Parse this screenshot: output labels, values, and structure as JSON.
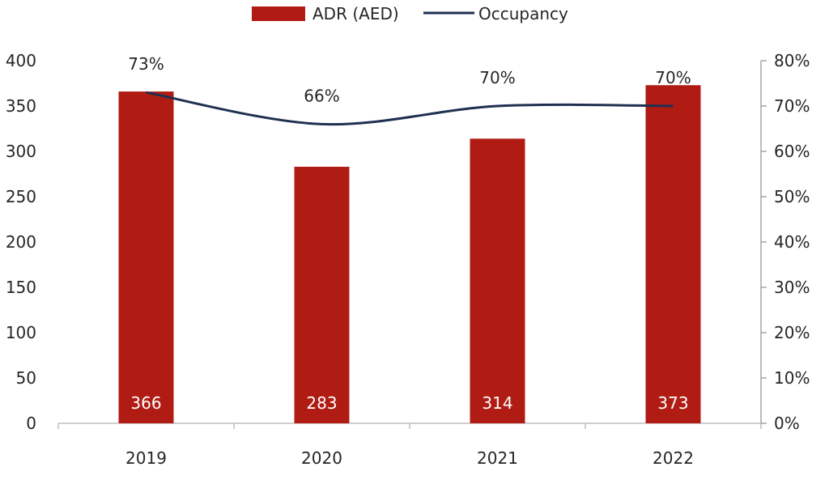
{
  "chart_data": {
    "type": "bar+line",
    "categories": [
      "2019",
      "2020",
      "2021",
      "2022"
    ],
    "series": [
      {
        "name": "ADR (AED)",
        "type": "bar",
        "axis": "left",
        "values": [
          366,
          283,
          314,
          373
        ],
        "color": "#B01C14",
        "data_labels": [
          "366",
          "283",
          "314",
          "373"
        ]
      },
      {
        "name": "Occupancy",
        "type": "line",
        "axis": "right",
        "values": [
          0.73,
          0.66,
          0.7,
          0.7
        ],
        "color": "#1F3050",
        "smooth": true,
        "data_labels": [
          "73%",
          "66%",
          "70%",
          "70%"
        ]
      }
    ],
    "y_left": {
      "lim": [
        0,
        400
      ],
      "ticks": [
        "0",
        "50",
        "100",
        "150",
        "200",
        "250",
        "300",
        "350",
        "400"
      ]
    },
    "y_right": {
      "lim": [
        0,
        0.8
      ],
      "ticks": [
        "0%",
        "10%",
        "20%",
        "30%",
        "40%",
        "50%",
        "60%",
        "70%",
        "80%"
      ]
    },
    "grid": false,
    "legend_position": "top"
  }
}
